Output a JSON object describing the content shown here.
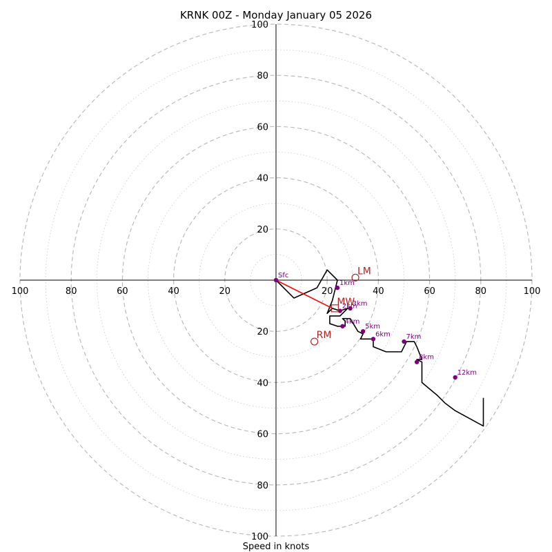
{
  "chart_data": {
    "type": "hodograph",
    "title": "KRNK 00Z - Monday January 05 2026",
    "xlabel": "Speed in knots",
    "max_speed": 100,
    "ring_step_major": 20,
    "ring_step_minor": 10,
    "grid": true,
    "x_tick_labels": [
      "100",
      "80",
      "60",
      "40",
      "20",
      "20",
      "40",
      "60",
      "80",
      "100"
    ],
    "y_tick_labels": [
      "100",
      "80",
      "60",
      "40",
      "20",
      "20",
      "40",
      "60",
      "80",
      "100"
    ],
    "hodograph_trace": {
      "color": "#000000",
      "points_uv": [
        [
          0,
          0
        ],
        [
          7,
          -7
        ],
        [
          16,
          -3
        ],
        [
          20,
          4
        ],
        [
          24,
          0
        ],
        [
          22,
          -8
        ],
        [
          20,
          -13
        ],
        [
          22,
          -11
        ],
        [
          25,
          -12
        ],
        [
          28,
          -11
        ],
        [
          25,
          -14
        ],
        [
          21,
          -14
        ],
        [
          21,
          -17
        ],
        [
          24,
          -18
        ],
        [
          27,
          -18
        ],
        [
          27,
          -16
        ],
        [
          26,
          -15
        ],
        [
          29,
          -15
        ],
        [
          32,
          -20
        ],
        [
          34,
          -21
        ],
        [
          33,
          -23
        ],
        [
          36,
          -23
        ],
        [
          38,
          -23
        ],
        [
          38,
          -26
        ],
        [
          43,
          -28
        ],
        [
          49,
          -28
        ],
        [
          51,
          -24
        ],
        [
          54,
          -24
        ],
        [
          55,
          -26
        ],
        [
          57,
          -31
        ],
        [
          55,
          -31
        ],
        [
          57,
          -32
        ],
        [
          57,
          -40
        ],
        [
          63,
          -45
        ],
        [
          66,
          -48
        ],
        [
          70,
          -51
        ],
        [
          81,
          -57
        ],
        [
          81,
          -46
        ]
      ]
    },
    "mean_wind_line": {
      "color": "#ff0000",
      "from_uv": [
        0,
        0
      ],
      "to_uv": [
        22,
        -11
      ]
    },
    "height_markers": [
      {
        "label": "Sfc",
        "u": 0,
        "v": 0
      },
      {
        "label": "1km",
        "u": 24,
        "v": -3
      },
      {
        "label": "2km",
        "u": 25,
        "v": -12
      },
      {
        "label": "3km",
        "u": 29,
        "v": -11
      },
      {
        "label": "4km",
        "u": 26,
        "v": -18
      },
      {
        "label": "5km",
        "u": 34,
        "v": -20
      },
      {
        "label": "6km",
        "u": 38,
        "v": -23
      },
      {
        "label": "7km",
        "u": 50,
        "v": -24
      },
      {
        "label": "8km",
        "u": 55,
        "v": -32
      },
      {
        "label": "12km",
        "u": 70,
        "v": -38
      }
    ],
    "motion_markers": [
      {
        "label": "LM",
        "u": 31,
        "v": 1,
        "shape": "circle"
      },
      {
        "label": "MW",
        "u": 23,
        "v": -11,
        "shape": "square"
      },
      {
        "label": "RM",
        "u": 15,
        "v": -24,
        "shape": "circle"
      }
    ],
    "marker_color": "#b22222",
    "height_color": "#800080"
  }
}
